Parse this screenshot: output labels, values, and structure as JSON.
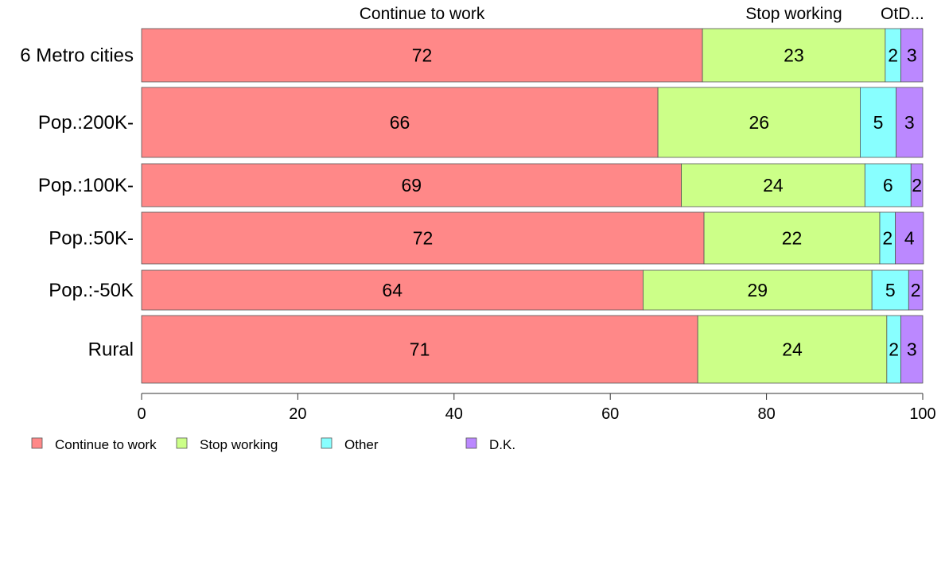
{
  "chart_data": {
    "type": "bar",
    "orientation": "horizontal",
    "stacked": true,
    "categories": [
      "6 Metro cities",
      "Pop.:200K-",
      "Pop.:100K-",
      "Pop.:50K-",
      "Pop.:-50K",
      "Rural"
    ],
    "series": [
      {
        "name": "Continue to work",
        "color": "#FF8888",
        "values": [
          71.8,
          66.1,
          69.1,
          72.0,
          64.2,
          71.2
        ]
      },
      {
        "name": "Stop working",
        "color": "#CCFF88",
        "values": [
          23.4,
          25.9,
          23.5,
          22.5,
          29.3,
          24.2
        ]
      },
      {
        "name": "Other",
        "color": "#88FFFF",
        "values": [
          2.0,
          4.6,
          5.9,
          2.0,
          4.7,
          1.8
        ]
      },
      {
        "name": "D.K.",
        "color": "#BB88FF",
        "values": [
          2.8,
          3.4,
          1.5,
          3.6,
          1.8,
          2.8
        ]
      }
    ],
    "data_labels": [
      [
        "72",
        "23",
        "2",
        "3"
      ],
      [
        "66",
        "26",
        "5",
        "3"
      ],
      [
        "69",
        "24",
        "6",
        "2"
      ],
      [
        "72",
        "22",
        "2",
        "4"
      ],
      [
        "64",
        "29",
        "5",
        "2"
      ],
      [
        "71",
        "24",
        "2",
        "3"
      ]
    ],
    "top_labels": [
      "Continue to work",
      "Stop working",
      "OtD..."
    ],
    "x_ticks": [
      "0",
      "20",
      "40",
      "60",
      "80",
      "100"
    ],
    "xlim": [
      0,
      100
    ],
    "legend": [
      "Continue to work",
      "Stop working",
      "Other",
      "D.K."
    ],
    "legend_position": "bottom-left",
    "grid": false
  }
}
